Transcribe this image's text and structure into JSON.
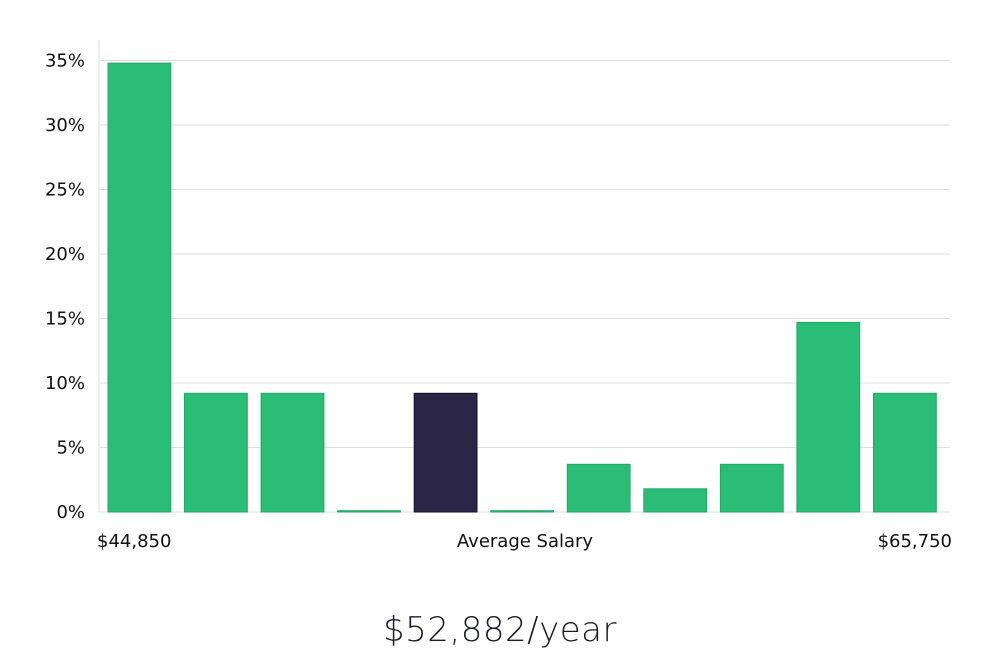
{
  "chart_data": {
    "type": "bar",
    "y_unit": "%",
    "ylim": [
      0,
      36
    ],
    "yticks": [
      0,
      5,
      10,
      15,
      20,
      25,
      30,
      35
    ],
    "ytick_labels": [
      "0%",
      "5%",
      "10%",
      "15%",
      "20%",
      "25%",
      "30%",
      "35%"
    ],
    "values": [
      34.8,
      9.2,
      9.2,
      0.1,
      9.2,
      0.1,
      3.7,
      1.8,
      3.7,
      14.7,
      9.2
    ],
    "highlight_index": 4,
    "x_labels": {
      "left": "$44,850",
      "center": "Average Salary",
      "right": "$65,750"
    },
    "grid": true,
    "colors": {
      "bar": "#2abd76",
      "bar_highlight": "#2a2544",
      "grid": "#dddddd"
    }
  },
  "salary_caption": "$52,882/year"
}
